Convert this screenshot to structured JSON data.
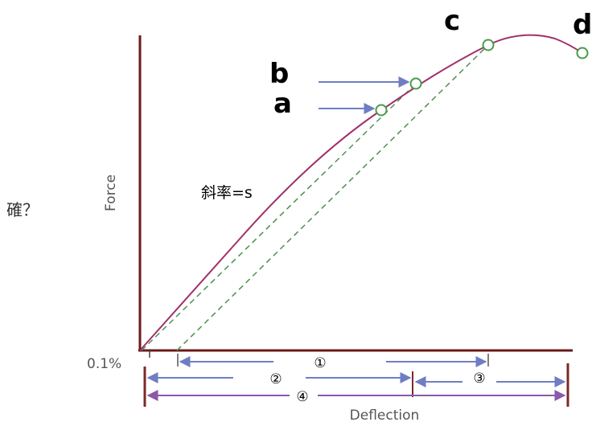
{
  "side_question": "確？",
  "axes": {
    "y_label": "Force",
    "x_label": "Deflection",
    "origin_label": "0.1%"
  },
  "points": [
    {
      "id": "a",
      "label": "a"
    },
    {
      "id": "b",
      "label": "b"
    },
    {
      "id": "c",
      "label": "c"
    },
    {
      "id": "d",
      "label": "d"
    }
  ],
  "slope_label": "斜率=s",
  "intervals": [
    {
      "id": "1",
      "label": "①"
    },
    {
      "id": "2",
      "label": "②"
    },
    {
      "id": "3",
      "label": "③"
    },
    {
      "id": "4",
      "label": "④"
    }
  ],
  "colors": {
    "curve": "#a0306a",
    "dashed": "#4f8f4f",
    "marker": "#4a9a4a",
    "arrow": "#6f7ec4",
    "interval4": "#8a5aa8",
    "tick": "#7a2a2a",
    "axis": "#6a1a1a",
    "text_gray": "#555555"
  }
}
